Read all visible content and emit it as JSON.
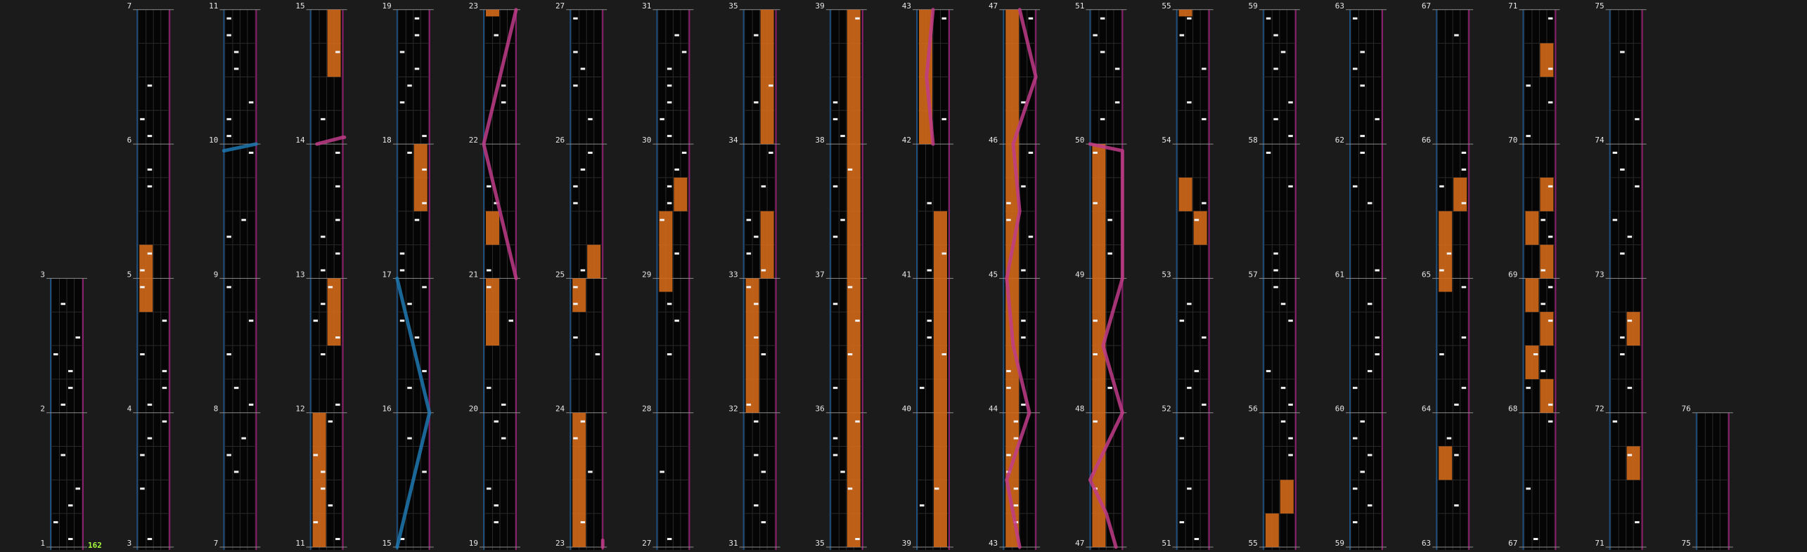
{
  "view": {
    "title": "",
    "bpm_label": "162",
    "colors": {
      "background": "#1b1b1b",
      "lane": "#050505",
      "grid_line": "#2a2a2a",
      "measure_line": "#8c8c8c",
      "left_border": "#1e4d7a",
      "right_border": "#8a1e6a",
      "note": "#f2f2f2",
      "fx_hold": "#d3691a",
      "laser_left": "#1e78b0",
      "laser_right": "#c03c88",
      "bpm": "#a6ff3c"
    }
  },
  "chart_data": {
    "type": "rhythm-chart",
    "measure_range": [
      1,
      76
    ],
    "measures_per_column": 4,
    "columns": [
      {
        "measures": [
          1,
          2,
          3
        ],
        "labels": [
          "1",
          "2",
          "3"
        ]
      },
      {
        "measures": [
          3,
          4,
          5,
          6,
          7
        ],
        "labels": [
          "3",
          "4",
          "5",
          "6",
          "7"
        ]
      },
      {
        "measures": [
          7,
          8,
          9,
          10,
          11
        ],
        "labels": [
          "7",
          "8",
          "9",
          "10",
          "11"
        ]
      },
      {
        "measures": [
          11,
          12,
          13,
          14,
          15
        ],
        "labels": [
          "11",
          "12",
          "13",
          "14",
          "15"
        ]
      },
      {
        "measures": [
          15,
          16,
          17,
          18,
          19
        ],
        "labels": [
          "15",
          "16",
          "17",
          "18",
          "19"
        ]
      },
      {
        "measures": [
          19,
          20,
          21,
          22,
          23
        ],
        "labels": [
          "19",
          "20",
          "21",
          "22",
          "23"
        ]
      },
      {
        "measures": [
          23,
          24,
          25,
          26,
          27
        ],
        "labels": [
          "23",
          "24",
          "25",
          "26",
          "27"
        ]
      },
      {
        "measures": [
          27,
          28,
          29,
          30,
          31
        ],
        "labels": [
          "27",
          "28",
          "29",
          "30",
          "31"
        ]
      },
      {
        "measures": [
          31,
          32,
          33,
          34,
          35
        ],
        "labels": [
          "31",
          "32",
          "33",
          "34",
          "35"
        ]
      },
      {
        "measures": [
          35,
          36,
          37,
          38,
          39
        ],
        "labels": [
          "35",
          "36",
          "37",
          "38",
          "39"
        ]
      },
      {
        "measures": [
          39,
          40,
          41,
          42,
          43
        ],
        "labels": [
          "39",
          "40",
          "41",
          "42",
          "43"
        ]
      },
      {
        "measures": [
          43,
          44,
          45,
          46,
          47
        ],
        "labels": [
          "43",
          "44",
          "45",
          "46",
          "47"
        ]
      },
      {
        "measures": [
          47,
          48,
          49,
          50,
          51
        ],
        "labels": [
          "47",
          "48",
          "49",
          "50",
          "51"
        ]
      },
      {
        "measures": [
          51,
          52,
          53,
          54,
          55
        ],
        "labels": [
          "51",
          "52",
          "53",
          "54",
          "55"
        ]
      },
      {
        "measures": [
          55,
          56,
          57,
          58,
          59
        ],
        "labels": [
          "55",
          "56",
          "57",
          "58",
          "59"
        ]
      },
      {
        "measures": [
          59,
          60,
          61,
          62,
          63
        ],
        "labels": [
          "59",
          "60",
          "61",
          "62",
          "63"
        ]
      },
      {
        "measures": [
          63,
          64,
          65,
          66,
          67
        ],
        "labels": [
          "63",
          "64",
          "65",
          "66",
          "67"
        ]
      },
      {
        "measures": [
          67,
          68,
          69,
          70,
          71
        ],
        "labels": [
          "67",
          "68",
          "69",
          "70",
          "71"
        ]
      },
      {
        "measures": [
          71,
          72,
          73,
          74,
          75
        ],
        "labels": [
          "71",
          "72",
          "73",
          "74",
          "75"
        ]
      },
      {
        "measures": [
          75,
          76
        ],
        "labels": [
          "75",
          "76"
        ]
      }
    ],
    "fx_holds": [
      {
        "column": 1,
        "lane": 0,
        "from": 1.75,
        "to": 2.25
      },
      {
        "column": 3,
        "lane": 0,
        "from": 0.0,
        "to": 1.0
      },
      {
        "column": 3,
        "lane": 1,
        "from": 1.5,
        "to": 2.0
      },
      {
        "column": 3,
        "lane": 1,
        "from": 3.5,
        "to": 4.0
      },
      {
        "column": 4,
        "lane": 1,
        "from": 2.5,
        "to": 3.0
      },
      {
        "column": 5,
        "lane": 0,
        "from": 1.5,
        "to": 2.0
      },
      {
        "column": 5,
        "lane": 0,
        "from": 2.25,
        "to": 2.5
      },
      {
        "column": 5,
        "lane": 0,
        "from": 3.95,
        "to": 4.0
      },
      {
        "column": 6,
        "lane": 0,
        "from": 0.0,
        "to": 1.0
      },
      {
        "column": 6,
        "lane": 0,
        "from": 1.75,
        "to": 2.0
      },
      {
        "column": 6,
        "lane": 1,
        "from": 2.0,
        "to": 2.25
      },
      {
        "column": 7,
        "lane": 0,
        "from": 1.9,
        "to": 2.5
      },
      {
        "column": 7,
        "lane": 1,
        "from": 2.5,
        "to": 2.75
      },
      {
        "column": 8,
        "lane": 0,
        "from": 1.0,
        "to": 2.0
      },
      {
        "column": 8,
        "lane": 1,
        "from": 2.0,
        "to": 2.5
      },
      {
        "column": 8,
        "lane": 1,
        "from": 3.0,
        "to": 4.0
      },
      {
        "column": 9,
        "lane": 1,
        "from": 0.0,
        "to": 4.0
      },
      {
        "column": 10,
        "lane": 0,
        "from": 3.0,
        "to": 4.0
      },
      {
        "column": 10,
        "lane": 1,
        "from": 0.0,
        "to": 2.5
      },
      {
        "column": 11,
        "lane": 0,
        "from": 0.0,
        "to": 4.0
      },
      {
        "column": 12,
        "lane": 0,
        "from": 0.0,
        "to": 3.0
      },
      {
        "column": 13,
        "lane": 0,
        "from": 3.95,
        "to": 4.0
      },
      {
        "column": 13,
        "lane": 1,
        "from": 2.25,
        "to": 2.5
      },
      {
        "column": 13,
        "lane": 0,
        "from": 2.5,
        "to": 2.75
      },
      {
        "column": 14,
        "lane": 0,
        "from": 0.0,
        "to": 0.25
      },
      {
        "column": 14,
        "lane": 1,
        "from": 0.25,
        "to": 0.5
      },
      {
        "column": 16,
        "lane": 0,
        "from": 0.5,
        "to": 0.75
      },
      {
        "column": 16,
        "lane": 1,
        "from": 2.5,
        "to": 2.75
      },
      {
        "column": 16,
        "lane": 0,
        "from": 1.9,
        "to": 2.5
      },
      {
        "column": 17,
        "lane": 1,
        "from": 1.0,
        "to": 1.25
      },
      {
        "column": 17,
        "lane": 0,
        "from": 1.25,
        "to": 1.5
      },
      {
        "column": 17,
        "lane": 1,
        "from": 1.5,
        "to": 1.75
      },
      {
        "column": 17,
        "lane": 0,
        "from": 1.75,
        "to": 2.0
      },
      {
        "column": 17,
        "lane": 1,
        "from": 2.0,
        "to": 2.25
      },
      {
        "column": 17,
        "lane": 0,
        "from": 2.25,
        "to": 2.5
      },
      {
        "column": 17,
        "lane": 1,
        "from": 2.5,
        "to": 2.75
      },
      {
        "column": 17,
        "lane": 1,
        "from": 3.5,
        "to": 3.75
      },
      {
        "column": 18,
        "lane": 1,
        "from": 0.5,
        "to": 0.75
      },
      {
        "column": 18,
        "lane": 1,
        "from": 1.5,
        "to": 1.75
      }
    ],
    "lasers": [
      {
        "column": 2,
        "side": "left",
        "points": [
          [
            2.95,
            0.0
          ],
          [
            3.0,
            1.0
          ]
        ]
      },
      {
        "column": 3,
        "side": "right",
        "points": [
          [
            3.0,
            0.2
          ],
          [
            3.05,
            1.0
          ],
          [
            3.05,
            1.05
          ]
        ]
      },
      {
        "column": 4,
        "side": "left",
        "points": [
          [
            0.0,
            0.0
          ],
          [
            1.0,
            1.0
          ],
          [
            2.0,
            0.0
          ]
        ]
      },
      {
        "column": 5,
        "side": "right",
        "points": [
          [
            2.0,
            1.0
          ],
          [
            3.0,
            0.0
          ],
          [
            4.0,
            1.0
          ]
        ]
      },
      {
        "column": 6,
        "side": "right",
        "points": [
          [
            0.0,
            1.0
          ],
          [
            0.05,
            1.0
          ]
        ]
      },
      {
        "column": 10,
        "side": "right",
        "points": [
          [
            3.0,
            0.5
          ],
          [
            3.5,
            0.3
          ],
          [
            4.0,
            0.5
          ]
        ]
      },
      {
        "column": 11,
        "side": "right",
        "points": [
          [
            0.0,
            0.5
          ],
          [
            0.5,
            0.1
          ],
          [
            1.0,
            0.8
          ],
          [
            1.5,
            0.3
          ],
          [
            2.0,
            0.1
          ],
          [
            2.5,
            0.5
          ],
          [
            3.0,
            0.3
          ],
          [
            3.5,
            1.0
          ],
          [
            4.0,
            0.5
          ]
        ]
      },
      {
        "column": 12,
        "side": "right",
        "points": [
          [
            0.0,
            0.8
          ],
          [
            0.25,
            0.5
          ],
          [
            0.5,
            0.0
          ],
          [
            1.0,
            1.0
          ],
          [
            1.5,
            0.4
          ],
          [
            2.0,
            1.0
          ],
          [
            2.95,
            1.0
          ],
          [
            3.0,
            0.0
          ]
        ]
      }
    ]
  }
}
